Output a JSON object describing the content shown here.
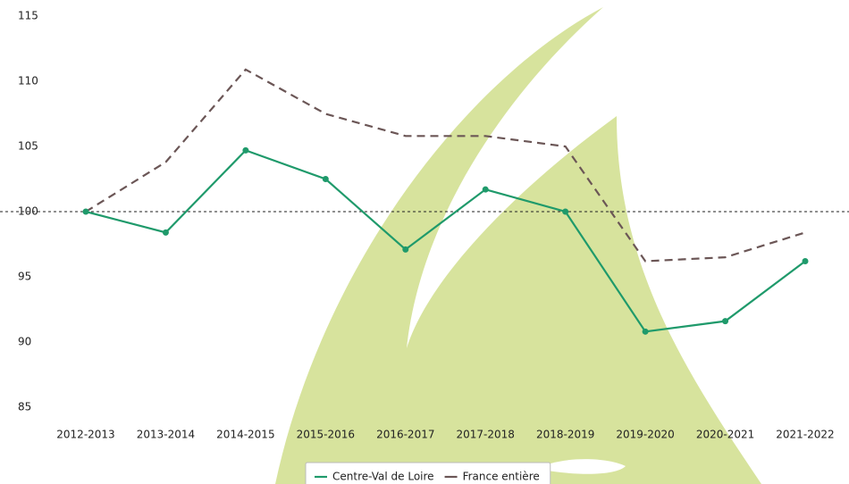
{
  "chart_data": {
    "type": "line",
    "categories": [
      "2012-2013",
      "2013-2014",
      "2014-2015",
      "2015-2016",
      "2016-2017",
      "2017-2018",
      "2018-2019",
      "2019-2020",
      "2020-2021",
      "2021-2022"
    ],
    "series": [
      {
        "name": "Centre-Val de Loire",
        "color": "#1f9a6b",
        "dashed": false,
        "markers": true,
        "values": [
          100,
          98.4,
          104.7,
          102.5,
          97.1,
          101.7,
          100,
          90.8,
          91.6,
          96.2
        ]
      },
      {
        "name": "France entière",
        "color": "#6b5656",
        "dashed": true,
        "markers": false,
        "values": [
          100,
          103.8,
          110.9,
          107.5,
          105.8,
          105.8,
          105.0,
          96.2,
          96.5,
          98.4
        ]
      }
    ],
    "reference_line": 100,
    "ylim": [
      85,
      115
    ],
    "yticks": [
      85,
      90,
      95,
      100,
      105,
      110,
      115
    ],
    "grid": false,
    "legend": "bottom"
  }
}
